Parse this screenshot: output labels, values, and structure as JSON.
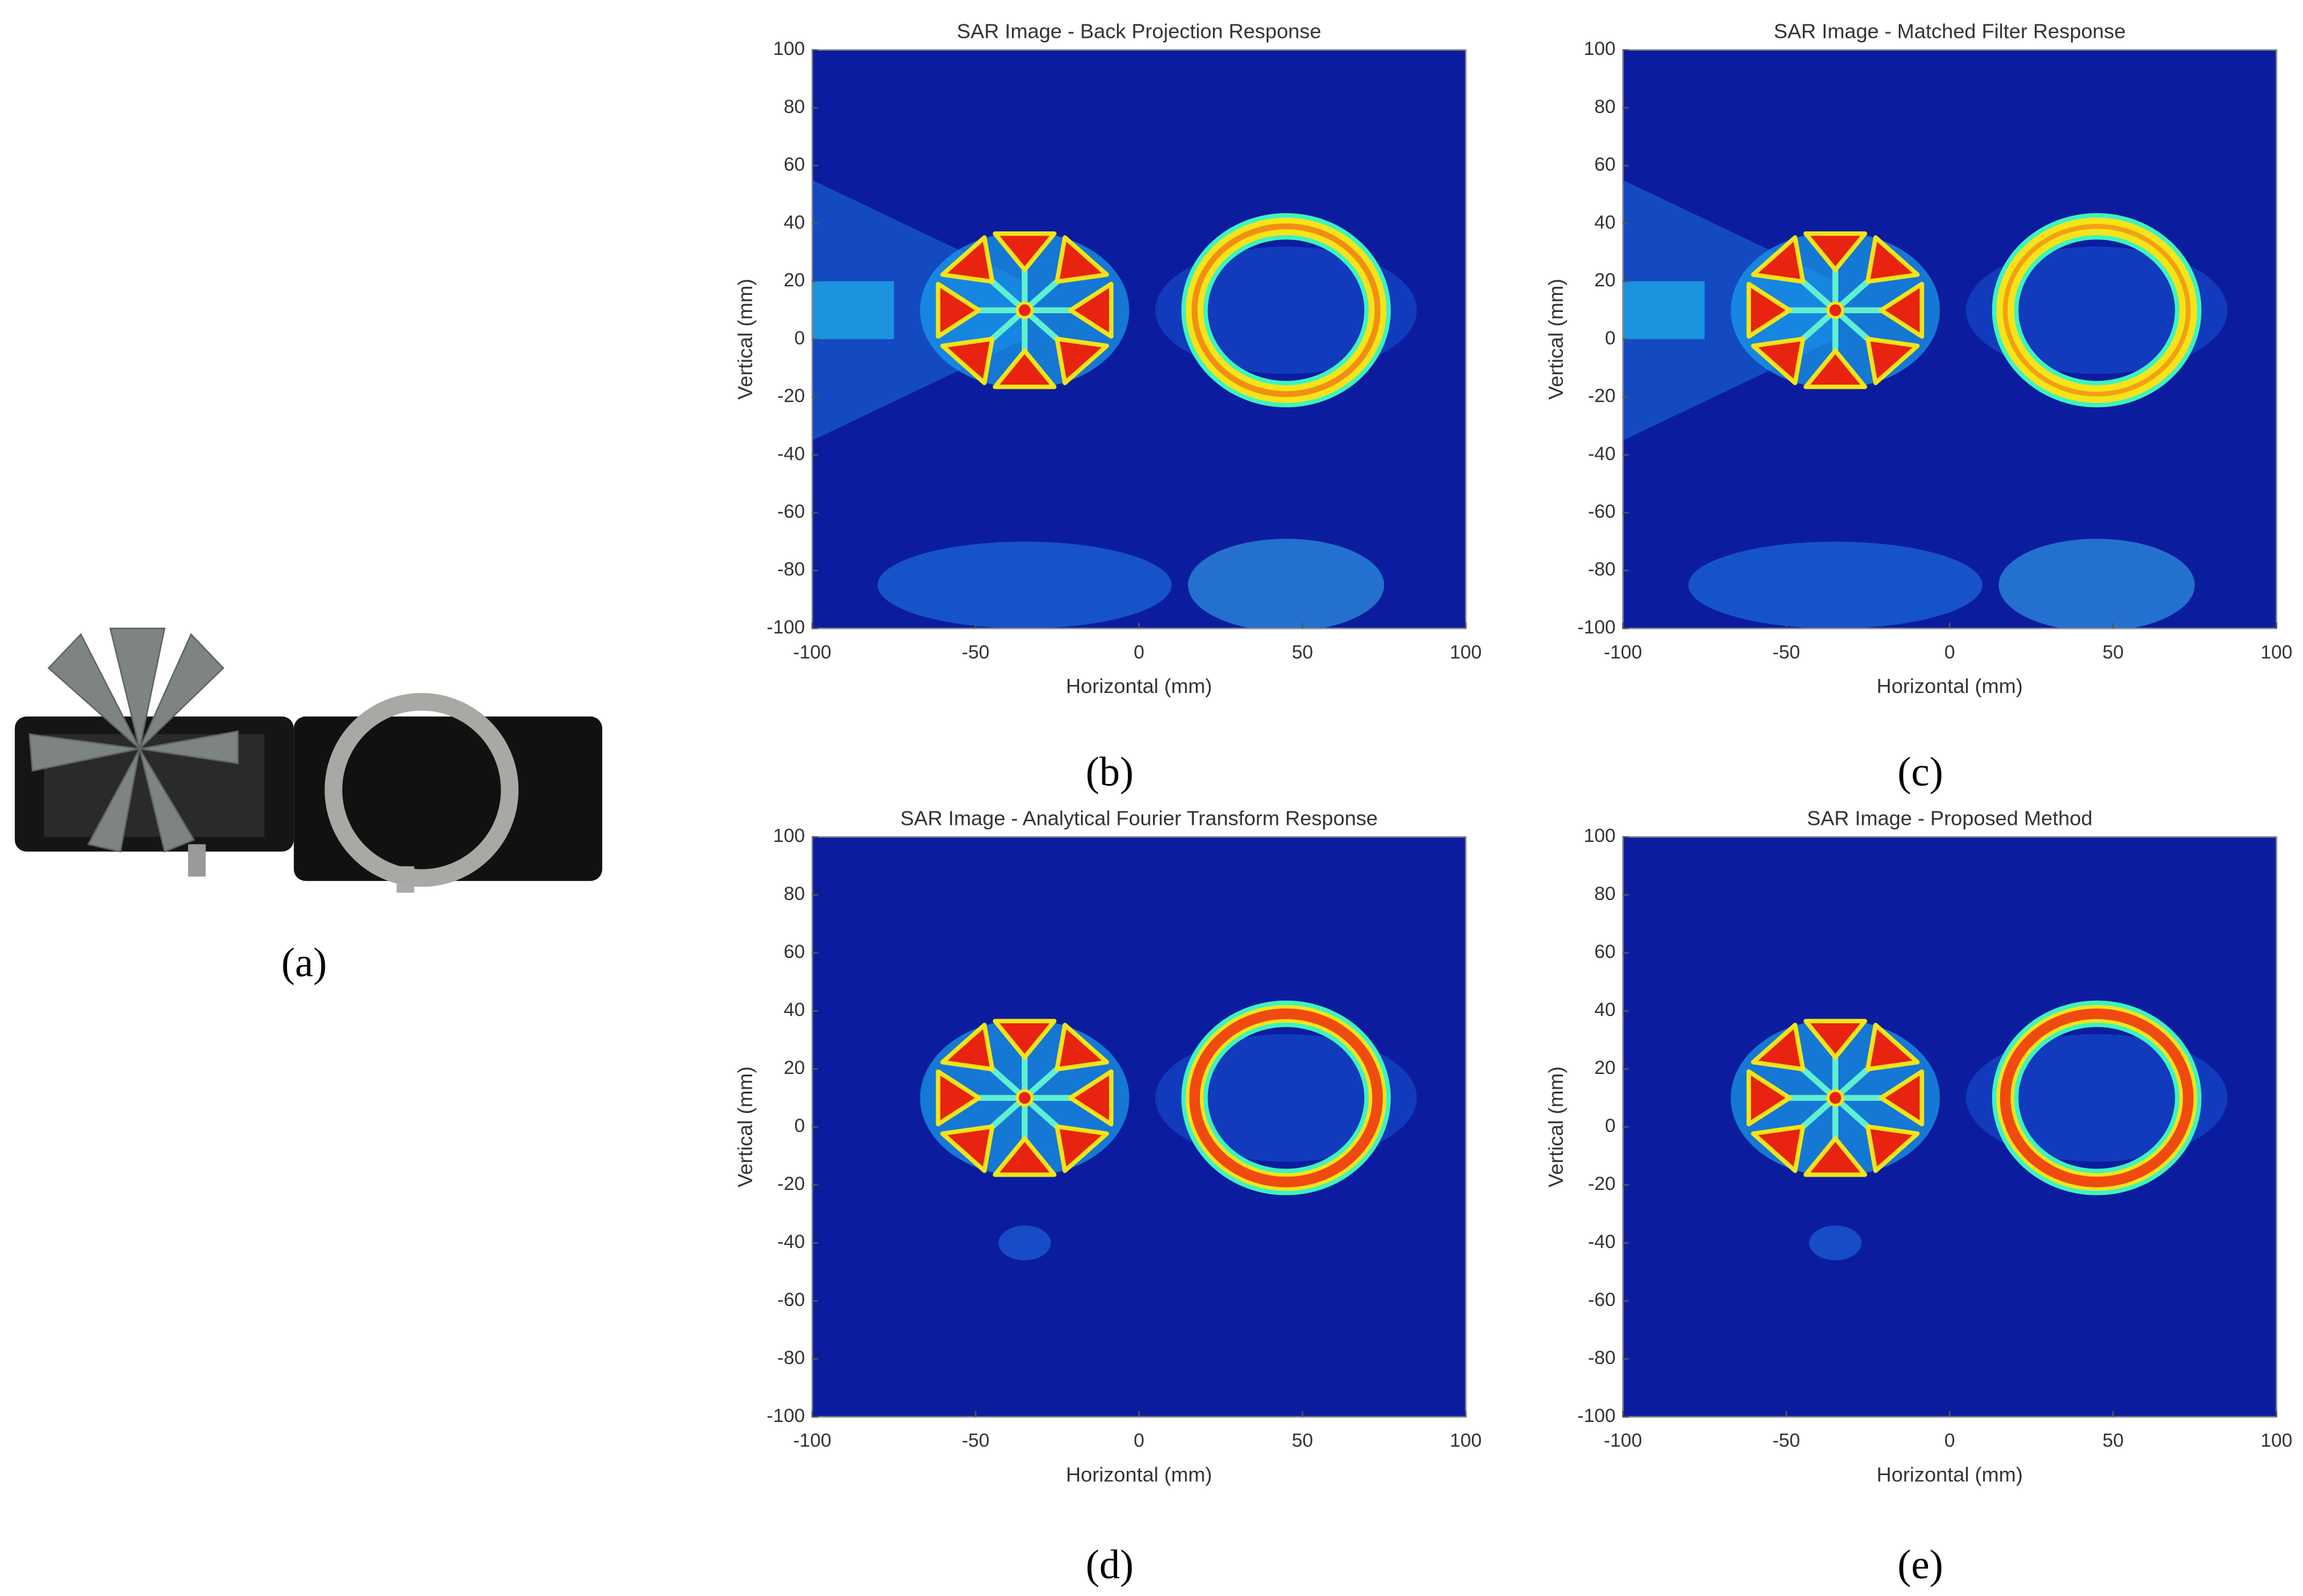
{
  "photo": {
    "label": "(a)"
  },
  "chart_data": [
    {
      "type": "heatmap",
      "title": "SAR Image - Back Projection Response",
      "xlabel": "Horizontal (mm)",
      "ylabel": "Vertical (mm)",
      "panel_label": "(b)",
      "xlim": [
        -100,
        100
      ],
      "ylim": [
        -100,
        100
      ],
      "xticks": [
        -100,
        -50,
        0,
        50,
        100
      ],
      "yticks": [
        -100,
        -80,
        -60,
        -40,
        -20,
        0,
        20,
        40,
        60,
        80,
        100
      ]
    },
    {
      "type": "heatmap",
      "title": "SAR Image - Matched Filter Response",
      "xlabel": "Horizontal (mm)",
      "ylabel": "Vertical (mm)",
      "panel_label": "(c)",
      "xlim": [
        -100,
        100
      ],
      "ylim": [
        -100,
        100
      ],
      "xticks": [
        -100,
        -50,
        0,
        50,
        100
      ],
      "yticks": [
        -100,
        -80,
        -60,
        -40,
        -20,
        0,
        20,
        40,
        60,
        80,
        100
      ]
    },
    {
      "type": "heatmap",
      "title": "SAR Image - Analytical Fourier Transform Response",
      "xlabel": "Horizontal (mm)",
      "ylabel": "Vertical (mm)",
      "panel_label": "(d)",
      "xlim": [
        -100,
        100
      ],
      "ylim": [
        -100,
        100
      ],
      "xticks": [
        -100,
        -50,
        0,
        50,
        100
      ],
      "yticks": [
        -100,
        -80,
        -60,
        -40,
        -20,
        0,
        20,
        40,
        60,
        80,
        100
      ]
    },
    {
      "type": "heatmap",
      "title": "SAR Image - Proposed Method",
      "xlabel": "Horizontal (mm)",
      "ylabel": "Vertical (mm)",
      "panel_label": "(e)",
      "xlim": [
        -100,
        100
      ],
      "ylim": [
        -100,
        100
      ],
      "xticks": [
        -100,
        -50,
        0,
        50,
        100
      ],
      "yticks": [
        -100,
        -80,
        -60,
        -40,
        -20,
        0,
        20,
        40,
        60,
        80,
        100
      ]
    }
  ]
}
